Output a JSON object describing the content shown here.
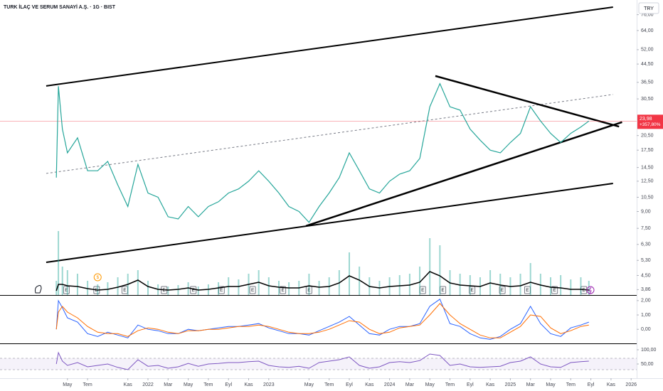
{
  "header": {
    "title": "TURK İLAÇ VE SERUM SANAYİ A.Ş. · 1G · BIST",
    "currency": "TRY"
  },
  "chart_data": [
    {
      "type": "line",
      "log_scale": true,
      "color": "#26a69a",
      "x": [
        2.9,
        3.1,
        3.5,
        4,
        5,
        6,
        7,
        8,
        9,
        10,
        11,
        12,
        13,
        14,
        15,
        16,
        17,
        18,
        19,
        20,
        21,
        22,
        23,
        24,
        25,
        26,
        27,
        28,
        29,
        30,
        31,
        32,
        33,
        34,
        35,
        36,
        37,
        38,
        39,
        40,
        41,
        42,
        43,
        44,
        45,
        46,
        47,
        48,
        49,
        50,
        51,
        52,
        53,
        54,
        55,
        55.8
      ],
      "values": [
        13,
        35,
        22,
        17,
        20,
        14,
        14,
        15.5,
        12,
        9.5,
        15,
        11,
        10.5,
        8.5,
        8.3,
        9.5,
        8.5,
        9.5,
        10,
        11,
        11.5,
        12.5,
        14,
        12.5,
        11,
        9.5,
        9,
        8,
        9.5,
        11,
        13,
        17,
        14,
        11.5,
        11,
        12.5,
        13.5,
        14,
        16,
        28,
        36,
        28,
        27,
        22,
        19.5,
        17.5,
        17,
        19,
        21,
        28,
        24,
        21,
        19,
        21,
        22.5,
        23.98
      ],
      "xlim": [
        -2.7,
        60.55
      ],
      "xticks": [
        {
          "value": 4,
          "label": "May"
        },
        {
          "value": 6,
          "label": "Tem"
        },
        {
          "value": 10,
          "label": "Kas"
        },
        {
          "value": 12,
          "label": "2022"
        },
        {
          "value": 14,
          "label": "Mar"
        },
        {
          "value": 16,
          "label": "May"
        },
        {
          "value": 18,
          "label": "Tem"
        },
        {
          "value": 20,
          "label": "Eyl"
        },
        {
          "value": 22,
          "label": "Kas"
        },
        {
          "value": 24,
          "label": "2023"
        },
        {
          "value": 28,
          "label": "May"
        },
        {
          "value": 30,
          "label": "Tem"
        },
        {
          "value": 32,
          "label": "Eyl"
        },
        {
          "value": 34,
          "label": "Kas"
        },
        {
          "value": 36,
          "label": "2024"
        },
        {
          "value": 38,
          "label": "Mar"
        },
        {
          "value": 40,
          "label": "May"
        },
        {
          "value": 42,
          "label": "Tem"
        },
        {
          "value": 44,
          "label": "Eyl"
        },
        {
          "value": 46,
          "label": "Kas"
        },
        {
          "value": 48,
          "label": "2025"
        },
        {
          "value": 50,
          "label": "Mar"
        },
        {
          "value": 52,
          "label": "May"
        },
        {
          "value": 54,
          "label": "Tem"
        },
        {
          "value": 56,
          "label": "Eyl"
        },
        {
          "value": 58,
          "label": "Kas"
        },
        {
          "value": 60,
          "label": "2026"
        }
      ],
      "ylim": [
        3.64,
        89.1
      ],
      "yticks": [
        {
          "value": 76,
          "label": "76,00"
        },
        {
          "value": 64,
          "label": "64,00"
        },
        {
          "value": 52,
          "label": "52,00"
        },
        {
          "value": 44.5,
          "label": "44,50"
        },
        {
          "value": 36.5,
          "label": "36,50"
        },
        {
          "value": 30.5,
          "label": "30,50"
        },
        {
          "value": 20.5,
          "label": "20,50"
        },
        {
          "value": 17.5,
          "label": "17,50"
        },
        {
          "value": 14.5,
          "label": "14,50"
        },
        {
          "value": 12.5,
          "label": "12,50"
        },
        {
          "value": 10.5,
          "label": "10,50"
        },
        {
          "value": 9,
          "label": "9,00"
        },
        {
          "value": 7.5,
          "label": "7,50"
        },
        {
          "value": 6.3,
          "label": "6,30"
        },
        {
          "value": 5.3,
          "label": "5,30"
        },
        {
          "value": 4.5,
          "label": "4,50"
        },
        {
          "value": 3.86,
          "label": "3,86"
        }
      ],
      "last_price": {
        "value": 23.98,
        "label": "23,98",
        "color": "#f23645"
      },
      "change": {
        "value": 357.8,
        "label": "+357,80%"
      },
      "trendlines": [
        {
          "x": [
            1.89,
            58.2
          ],
          "y": [
            35.1,
            82.5
          ],
          "style": "solid",
          "width": 2
        },
        {
          "x": [
            1.89,
            58.2
          ],
          "y": [
            5.19,
            12.2
          ],
          "style": "solid",
          "width": 2
        },
        {
          "x": [
            1.89,
            58.2
          ],
          "y": [
            13.6,
            32.0
          ],
          "style": "dashed",
          "width": 1
        },
        {
          "x": [
            27.7,
            59.1
          ],
          "y": [
            7.7,
            23.7
          ],
          "style": "solid",
          "width": 2.5
        },
        {
          "x": [
            40.55,
            58.8
          ],
          "y": [
            39.1,
            22.6
          ],
          "style": "solid",
          "width": 2.5
        }
      ],
      "events": [
        {
          "x": 3.9,
          "label": "E"
        },
        {
          "x": 6.9,
          "label": "E"
        },
        {
          "x": 9.7,
          "label": "E"
        },
        {
          "x": 13.6,
          "label": "E"
        },
        {
          "x": 16.5,
          "label": "E"
        },
        {
          "x": 19.3,
          "label": "E"
        },
        {
          "x": 22.4,
          "label": "E"
        },
        {
          "x": 25.4,
          "label": "E"
        },
        {
          "x": 28,
          "label": "E"
        },
        {
          "x": 39.3,
          "label": "E"
        },
        {
          "x": 41.3,
          "label": "E"
        },
        {
          "x": 44.2,
          "label": "E"
        },
        {
          "x": 47.2,
          "label": "E"
        },
        {
          "x": 49.7,
          "label": "E"
        },
        {
          "x": 52.4,
          "label": "E"
        },
        {
          "x": 55.3,
          "label": "E"
        }
      ],
      "dividend": {
        "x": 7.0,
        "label": "$"
      }
    },
    {
      "type": "bar",
      "color": "#26a69a",
      "ma_color": "#000000",
      "ylim": [
        0,
        100
      ],
      "values": [
        20,
        90,
        40,
        35,
        30,
        20,
        15,
        18,
        25,
        30,
        35,
        20,
        15,
        12,
        14,
        18,
        12,
        15,
        18,
        25,
        22,
        30,
        35,
        25,
        20,
        18,
        20,
        30,
        20,
        25,
        35,
        60,
        40,
        25,
        20,
        25,
        28,
        30,
        40,
        80,
        70,
        35,
        30,
        28,
        25,
        35,
        30,
        25,
        30,
        45,
        30,
        25,
        28,
        22,
        25,
        20
      ],
      "ma": [
        6,
        15,
        15,
        13,
        12,
        9,
        7,
        8,
        11,
        15,
        21,
        12,
        8,
        7,
        8,
        10,
        7,
        8,
        10,
        12,
        12,
        15,
        18,
        13,
        11,
        10,
        10,
        13,
        11,
        12,
        17,
        27,
        21,
        12,
        10,
        12,
        13,
        14,
        18,
        33,
        27,
        17,
        14,
        13,
        12,
        17,
        14,
        12,
        13,
        18,
        14,
        11,
        10,
        8,
        8,
        7
      ]
    },
    {
      "type": "line",
      "ylim": [
        -0.93,
        2.29
      ],
      "yticks": [
        {
          "value": 2,
          "label": "2,00"
        },
        {
          "value": 1,
          "label": "1,00"
        },
        {
          "value": 0,
          "label": "0,00"
        }
      ],
      "series": [
        {
          "color": "#2962ff",
          "values": [
            0,
            2.0,
            1.5,
            0.8,
            0.5,
            -0.3,
            -0.5,
            -0.2,
            -0.4,
            -0.6,
            0.3,
            0,
            -0.1,
            -0.3,
            -0.3,
            0,
            -0.1,
            0,
            0.1,
            0.2,
            0.2,
            0.3,
            0.4,
            0.1,
            -0.1,
            -0.3,
            -0.3,
            -0.4,
            -0.1,
            0.2,
            0.5,
            0.9,
            0.3,
            -0.3,
            -0.4,
            0,
            0.2,
            0.2,
            0.4,
            1.6,
            2.1,
            0.4,
            0.2,
            -0.3,
            -0.6,
            -0.7,
            -0.5,
            0,
            0.4,
            1.6,
            0.4,
            -0.3,
            -0.5,
            0.1,
            0.3,
            0.5
          ]
        },
        {
          "color": "#ff6d00",
          "values": [
            0,
            1.2,
            1.6,
            1.2,
            0.8,
            0.2,
            -0.2,
            -0.3,
            -0.3,
            -0.5,
            -0.1,
            0.1,
            0,
            -0.2,
            -0.3,
            -0.1,
            -0.1,
            0,
            0,
            0.1,
            0.2,
            0.2,
            0.3,
            0.2,
            0,
            -0.2,
            -0.3,
            -0.3,
            -0.2,
            0,
            0.3,
            0.6,
            0.5,
            0,
            -0.3,
            -0.2,
            0.1,
            0.2,
            0.3,
            1.0,
            1.8,
            1.0,
            0.4,
            0,
            -0.4,
            -0.6,
            -0.6,
            -0.2,
            0.2,
            1.0,
            0.9,
            0.1,
            -0.3,
            -0.1,
            0.2,
            0.3
          ]
        }
      ]
    },
    {
      "type": "line",
      "color": "#7e57c2",
      "ylim": [
        5,
        117.5
      ],
      "bands": [
        30,
        70
      ],
      "yticks": [
        {
          "value": 100,
          "label": "100,00"
        },
        {
          "value": 50,
          "label": "50,00"
        }
      ],
      "values": [
        50,
        90,
        60,
        45,
        55,
        40,
        45,
        50,
        38,
        30,
        65,
        42,
        45,
        35,
        40,
        52,
        42,
        50,
        52,
        55,
        55,
        58,
        60,
        45,
        40,
        38,
        42,
        35,
        55,
        60,
        65,
        75,
        45,
        35,
        40,
        55,
        58,
        55,
        62,
        85,
        80,
        45,
        50,
        40,
        38,
        40,
        42,
        55,
        60,
        75,
        50,
        40,
        38,
        55,
        58,
        60
      ]
    }
  ]
}
